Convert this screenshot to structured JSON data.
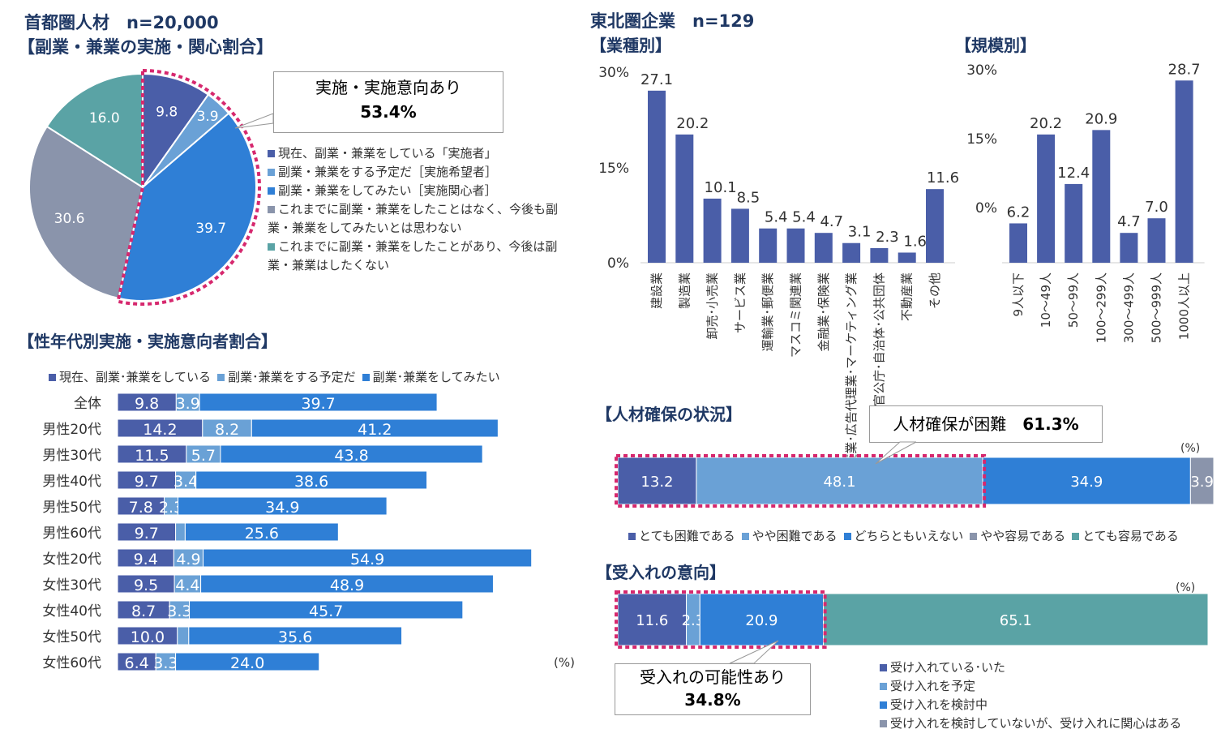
{
  "colors": {
    "dark": "#4a5ea8",
    "light": "#6aa1d6",
    "bright": "#2f7fd6",
    "gray": "#8a94ab",
    "teal": "#5aa3a5",
    "highlight": "#d6286e"
  },
  "left": {
    "title1": "首都圏人材　n=20,000",
    "title2": "【副業・兼業の実施・関心割合】",
    "callout": {
      "label": "実施・実施意向あり",
      "value": "53.4%"
    },
    "pie": {
      "type": "pie",
      "values": [
        9.8,
        3.9,
        39.7,
        30.6,
        16.0
      ],
      "labels": [
        "9.8",
        "3.9",
        "39.7",
        "30.6",
        "16.0"
      ],
      "legend": [
        "現在、副業・兼業をしている「実施者」",
        "副業・兼業をする予定だ［実施希望者］",
        "副業・兼業をしてみたい［実施関心者］",
        "これまでに副業・兼業をしたことはなく、今後も副業・兼業をしてみたいとは思わない",
        "これまでに副業・兼業をしたことがあり、今後は副業・兼業はしたくない"
      ]
    },
    "bar_title": "【性年代別実施・実施意向者割合】",
    "bar_legend": [
      "現在、副業･兼業をしている",
      "副業･兼業をする予定だ",
      "副業･兼業をしてみたい"
    ],
    "unit": "(%)"
  },
  "chart_data": [
    {
      "type": "bar",
      "orientation": "horizontal",
      "stacked": true,
      "categories": [
        "全体",
        "男性20代",
        "男性30代",
        "男性40代",
        "男性50代",
        "男性60代",
        "女性20代",
        "女性30代",
        "女性40代",
        "女性50代",
        "女性60代"
      ],
      "series": [
        {
          "name": "現在、副業･兼業をしている",
          "values": [
            9.8,
            14.2,
            11.5,
            9.7,
            7.8,
            9.7,
            9.4,
            9.5,
            8.7,
            10.0,
            6.4
          ]
        },
        {
          "name": "副業･兼業をする予定だ",
          "values": [
            3.9,
            8.2,
            5.7,
            3.4,
            2.3,
            1.6,
            4.9,
            4.4,
            3.3,
            1.9,
            3.3
          ]
        },
        {
          "name": "副業･兼業をしてみたい",
          "values": [
            39.7,
            41.2,
            43.8,
            38.6,
            34.9,
            25.6,
            54.9,
            48.9,
            45.7,
            35.6,
            24.0
          ]
        }
      ],
      "labels_shown": [
        [
          true,
          true,
          true
        ],
        [
          true,
          true,
          true
        ],
        [
          true,
          true,
          true
        ],
        [
          true,
          true,
          true
        ],
        [
          true,
          true,
          true
        ],
        [
          true,
          false,
          true
        ],
        [
          true,
          true,
          true
        ],
        [
          true,
          true,
          true
        ],
        [
          true,
          true,
          true
        ],
        [
          true,
          false,
          true
        ],
        [
          true,
          true,
          true
        ]
      ]
    },
    {
      "type": "bar",
      "title": "【業種別】",
      "categories": [
        "建設業",
        "製造業",
        "卸売･小売業",
        "サービス業",
        "運輸業･郵便業",
        "マスコミ関連業",
        "金融業･保険業",
        "調査業･広告代理業･マーケティング業",
        "官公庁･自治体･公共団体",
        "不動産業",
        "その他"
      ],
      "values": [
        27.1,
        20.2,
        10.1,
        8.5,
        5.4,
        5.4,
        4.7,
        3.1,
        2.3,
        1.6,
        11.6
      ],
      "yticks": [
        "30%",
        "15%",
        "0%"
      ],
      "ylim": [
        0,
        30
      ]
    },
    {
      "type": "bar",
      "title": "【規模別】",
      "categories": [
        "9人以下",
        "10～49人",
        "50～99人",
        "100～299人",
        "300～499人",
        "500～999人",
        "1000人以上"
      ],
      "values": [
        6.2,
        20.2,
        12.4,
        20.9,
        4.7,
        7.0,
        28.7
      ],
      "yticks": [
        "30%",
        "15%",
        "0%"
      ],
      "ylim": [
        0,
        30
      ]
    },
    {
      "type": "bar",
      "stacked": true,
      "orientation": "horizontal",
      "title": "【人材確保の状況】",
      "values": [
        13.2,
        48.1,
        34.9,
        3.9
      ],
      "legend": [
        "とても困難である",
        "やや困難である",
        "どちらともいえない",
        "やや容易である",
        "とても容易である"
      ],
      "unit": "(%)",
      "callout": {
        "label": "人材確保が困難",
        "value": "61.3%"
      }
    },
    {
      "type": "bar",
      "stacked": true,
      "orientation": "horizontal",
      "title": "【受入れの意向】",
      "values": [
        11.6,
        2.3,
        20.9,
        65.1
      ],
      "legend": [
        "受け入れている･いた",
        "受け入れを予定",
        "受け入れを検討中",
        "受け入れを検討していないが、受け入れに関心はある"
      ],
      "unit": "(%)",
      "callout": {
        "label": "受入れの可能性あり",
        "value": "34.8%"
      }
    }
  ],
  "right": {
    "title": "東北圏企業　n=129"
  }
}
